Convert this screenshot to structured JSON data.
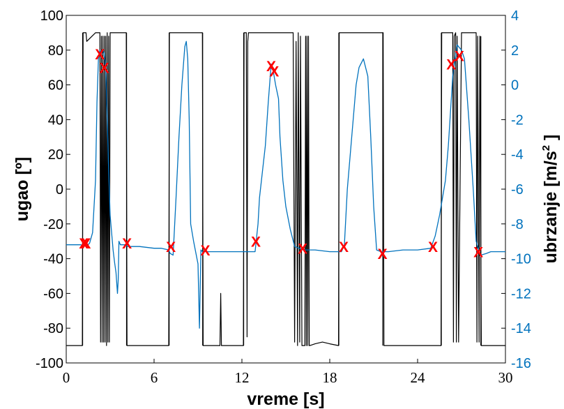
{
  "chart_data": {
    "type": "line",
    "title": "",
    "xlabel": "vreme [s]",
    "ylabel_left": "ugao [º]",
    "ylabel_right": "ubrzanje [m/s",
    "ylabel_right_sup": "2",
    "ylabel_right_end": " ]",
    "xlim": [
      0,
      30
    ],
    "ylim_left": [
      -100,
      100
    ],
    "ylim_right": [
      -16,
      4
    ],
    "x_ticks": [
      0,
      6,
      12,
      18,
      24,
      30
    ],
    "x_tick_labels": [
      "0",
      "6",
      "12",
      "18",
      "24",
      "30"
    ],
    "y_left_ticks": [
      100,
      80,
      60,
      40,
      20,
      0,
      -20,
      -40,
      -60,
      -80,
      -100
    ],
    "y_left_tick_labels": [
      "100",
      "80",
      "60",
      "40",
      "20",
      "0",
      "-20",
      "-40",
      "-60",
      "-80",
      "-100"
    ],
    "y_right_ticks": [
      4,
      2,
      0,
      -2,
      -4,
      -6,
      -8,
      -10,
      -12,
      -14,
      -16
    ],
    "y_right_tick_labels": [
      "4",
      "2",
      "0",
      "-2",
      "-4",
      "-6",
      "-8",
      "-10",
      "-12",
      "-14",
      "-16"
    ],
    "grid": false,
    "colors": {
      "angle": "#000000",
      "acceleration": "#0072BD",
      "markers": "#ff0000"
    },
    "series": [
      {
        "axis": "left",
        "x": [
          0,
          1.1,
          1.15,
          1.35,
          1.4,
          2.0,
          2.3,
          2.35,
          2.4,
          2.45,
          2.5,
          2.55,
          2.6,
          2.65,
          2.7,
          2.75,
          2.8,
          2.85,
          2.9,
          2.95,
          3.0,
          3.4,
          3.45,
          4.1,
          4.15,
          7.0,
          7.05,
          7.3,
          7.35,
          9.3,
          9.35,
          10.5,
          10.55,
          10.6,
          12.1,
          12.15,
          12.3,
          12.35,
          12.4,
          12.45,
          13.0,
          13.1,
          13.15,
          14.2,
          14.3,
          15.3,
          15.5,
          15.6,
          15.7,
          15.8,
          15.85,
          15.95,
          16.0,
          16.1,
          16.15,
          16.3,
          16.35,
          16.4,
          16.45,
          16.5,
          16.55,
          16.6,
          16.65,
          17.0,
          17.5,
          18.0,
          18.6,
          18.65,
          18.7,
          21.6,
          21.65,
          21.7,
          24.9,
          24.95,
          25.6,
          25.65,
          26.3,
          26.4,
          26.45,
          26.5,
          26.6,
          26.65,
          26.7,
          26.8,
          27.0,
          27.1,
          28.0,
          28.05,
          28.1,
          28.2,
          28.25,
          28.35,
          28.4,
          30
        ],
        "values": [
          -90,
          -90,
          90,
          90,
          85,
          90,
          90,
          -88,
          88,
          -88,
          88,
          -88,
          88,
          -88,
          88,
          -90,
          90,
          -88,
          88,
          -88,
          90,
          90,
          90,
          90,
          -90,
          -90,
          90,
          90,
          90,
          90,
          -90,
          -90,
          -60,
          -90,
          -90,
          90,
          90,
          -85,
          85,
          90,
          90,
          90,
          90,
          90,
          90,
          90,
          90,
          -88,
          85,
          -90,
          90,
          -88,
          88,
          -90,
          -90,
          -90,
          88,
          -90,
          88,
          -90,
          88,
          -90,
          -90,
          -89,
          -88,
          -89,
          -90,
          90,
          90,
          90,
          90,
          -90,
          -90,
          -90,
          -90,
          90,
          90,
          90,
          -88,
          88,
          90,
          -88,
          88,
          -88,
          90,
          90,
          90,
          -88,
          88,
          -88,
          88,
          -90,
          -90,
          -90
        ],
        "jumps": [
          [
            1.12,
            -90,
            90
          ],
          [
            4.12,
            90,
            -90
          ],
          [
            7.03,
            -90,
            90
          ],
          [
            9.32,
            90,
            -90
          ],
          [
            12.12,
            -90,
            90
          ],
          [
            18.62,
            -90,
            90
          ],
          [
            21.62,
            90,
            -90
          ],
          [
            25.62,
            -90,
            90
          ],
          [
            28.32,
            88,
            -90
          ]
        ]
      },
      {
        "axis": "right",
        "x": [
          0,
          1,
          1.4,
          1.6,
          1.8,
          2.0,
          2.1,
          2.2,
          2.3,
          2.4,
          2.5,
          2.6,
          2.7,
          2.8,
          2.9,
          3.0,
          3.1,
          3.2,
          3.3,
          3.4,
          3.5,
          3.55,
          3.6,
          3.7,
          4.0,
          4.2,
          5,
          6,
          6.5,
          7.0,
          7.1,
          7.3,
          7.5,
          7.7,
          7.9,
          8.1,
          8.2,
          8.3,
          8.4,
          8.5,
          8.7,
          9.0,
          9.1,
          9.2,
          9.3,
          9.5,
          10,
          11,
          12,
          12.5,
          12.9,
          13.1,
          13.2,
          13.4,
          13.6,
          13.8,
          14.0,
          14.1,
          14.3,
          14.5,
          14.6,
          14.8,
          15.0,
          15.3,
          15.6,
          15.9,
          16.2,
          17,
          18,
          18.8,
          19.0,
          19.2,
          19.5,
          19.8,
          20.0,
          20.3,
          20.6,
          20.8,
          21.0,
          21.2,
          21.5,
          22,
          23,
          24,
          24.9,
          25.2,
          25.5,
          25.9,
          26.1,
          26.4,
          26.7,
          27.0,
          27.2,
          27.5,
          27.8,
          28.0,
          28.3,
          28.7,
          29,
          30
        ],
        "values": [
          -9.2,
          -9.2,
          -9.3,
          -9.1,
          -8.5,
          -5.5,
          -1.0,
          1.5,
          2.0,
          1.8,
          2.0,
          1.8,
          1.0,
          -2.0,
          -5.0,
          -7.5,
          -8.5,
          -9.5,
          -10.2,
          -10.8,
          -12.0,
          -11.2,
          -9.0,
          -9.2,
          -9.2,
          -9.3,
          -9.3,
          -9.4,
          -9.4,
          -9.5,
          -9.7,
          -9.8,
          -6.5,
          -3.0,
          0.0,
          2.2,
          2.5,
          1.5,
          -2.0,
          -8.0,
          -9.0,
          -10.3,
          -14.0,
          -9.5,
          -9.6,
          -9.6,
          -9.6,
          -9.6,
          -9.6,
          -9.6,
          -9.6,
          -8.0,
          -6.5,
          -5.0,
          -3.5,
          -1.0,
          1.2,
          1.0,
          0.0,
          -0.8,
          -3.0,
          -5.5,
          -7.0,
          -8.3,
          -9.3,
          -9.4,
          -9.5,
          -9.5,
          -9.6,
          -9.6,
          -9.2,
          -6.0,
          -3.0,
          0.0,
          1.0,
          1.5,
          0.5,
          -3.0,
          -7.0,
          -9.5,
          -9.6,
          -9.6,
          -9.5,
          -9.5,
          -9.4,
          -8.7,
          -7.5,
          -5.5,
          -3.5,
          0.5,
          2.3,
          2.0,
          1.5,
          -2.0,
          -6.0,
          -9.0,
          -9.8,
          -9.7,
          -9.6,
          -9.6
        ]
      }
    ],
    "markers": {
      "symbol": "X",
      "x": [
        1.2,
        1.35,
        2.3,
        2.6,
        4.15,
        7.15,
        9.5,
        12.95,
        14.0,
        14.2,
        16.15,
        18.95,
        21.6,
        25.05,
        26.3,
        26.85,
        28.15
      ],
      "y_left": [
        -31,
        -31,
        78,
        70,
        -31,
        -33,
        -35,
        -30,
        71,
        68,
        -34,
        -33,
        -37,
        -33,
        72,
        77,
        -36
      ]
    }
  }
}
